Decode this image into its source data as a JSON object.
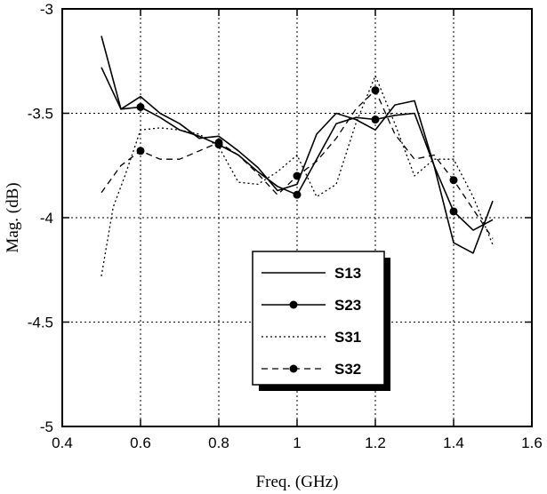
{
  "chart_data": {
    "type": "line",
    "xlabel": "Freq. (GHz)",
    "ylabel": "Mag. (dB)",
    "xlim": [
      0.4,
      1.6
    ],
    "ylim": [
      -5,
      -3
    ],
    "xticks": [
      "0.4",
      "0.6",
      "0.8",
      "1",
      "1.2",
      "1.4",
      "1.6"
    ],
    "yticks": [
      "-5",
      "-4.5",
      "-4",
      "-3.5",
      "-3"
    ],
    "grid": true,
    "legend_position": "center-right",
    "series": [
      {
        "name": "S13",
        "style": "solid",
        "markers": false,
        "x": [
          0.5,
          0.55,
          0.6,
          0.65,
          0.7,
          0.75,
          0.8,
          0.85,
          0.9,
          0.95,
          1.0,
          1.05,
          1.1,
          1.15,
          1.2,
          1.25,
          1.3,
          1.35,
          1.4,
          1.45,
          1.5
        ],
        "values": [
          -3.13,
          -3.48,
          -3.42,
          -3.5,
          -3.55,
          -3.62,
          -3.61,
          -3.68,
          -3.76,
          -3.87,
          -3.84,
          -3.6,
          -3.5,
          -3.53,
          -3.58,
          -3.46,
          -3.44,
          -3.75,
          -4.12,
          -4.17,
          -3.92
        ]
      },
      {
        "name": "S23",
        "style": "solid",
        "markers": true,
        "x": [
          0.5,
          0.55,
          0.6,
          0.65,
          0.7,
          0.75,
          0.8,
          0.85,
          0.9,
          0.95,
          1.0,
          1.05,
          1.1,
          1.15,
          1.2,
          1.25,
          1.3,
          1.35,
          1.4,
          1.45,
          1.5
        ],
        "values": [
          -3.28,
          -3.48,
          -3.47,
          -3.52,
          -3.58,
          -3.61,
          -3.65,
          -3.7,
          -3.78,
          -3.85,
          -3.89,
          -3.72,
          -3.55,
          -3.52,
          -3.53,
          -3.51,
          -3.5,
          -3.75,
          -3.97,
          -4.06,
          -4.01
        ]
      },
      {
        "name": "S31",
        "style": "dotted",
        "markers": false,
        "x": [
          0.5,
          0.53,
          0.56,
          0.6,
          0.65,
          0.7,
          0.75,
          0.8,
          0.85,
          0.9,
          0.95,
          1.0,
          1.05,
          1.1,
          1.15,
          1.2,
          1.25,
          1.3,
          1.35,
          1.4,
          1.45,
          1.5
        ],
        "values": [
          -4.28,
          -3.95,
          -3.8,
          -3.58,
          -3.57,
          -3.58,
          -3.6,
          -3.66,
          -3.83,
          -3.84,
          -3.78,
          -3.7,
          -3.9,
          -3.84,
          -3.55,
          -3.32,
          -3.55,
          -3.8,
          -3.72,
          -3.72,
          -3.9,
          -4.13
        ]
      },
      {
        "name": "S32",
        "style": "dashed",
        "markers": true,
        "x": [
          0.5,
          0.55,
          0.6,
          0.65,
          0.7,
          0.75,
          0.8,
          0.85,
          0.9,
          0.95,
          1.0,
          1.05,
          1.1,
          1.15,
          1.2,
          1.25,
          1.3,
          1.35,
          1.4,
          1.45,
          1.5
        ],
        "values": [
          -3.88,
          -3.75,
          -3.68,
          -3.72,
          -3.72,
          -3.68,
          -3.64,
          -3.7,
          -3.79,
          -3.89,
          -3.8,
          -3.73,
          -3.62,
          -3.48,
          -3.39,
          -3.6,
          -3.72,
          -3.7,
          -3.82,
          -3.96,
          -4.1
        ]
      }
    ]
  }
}
